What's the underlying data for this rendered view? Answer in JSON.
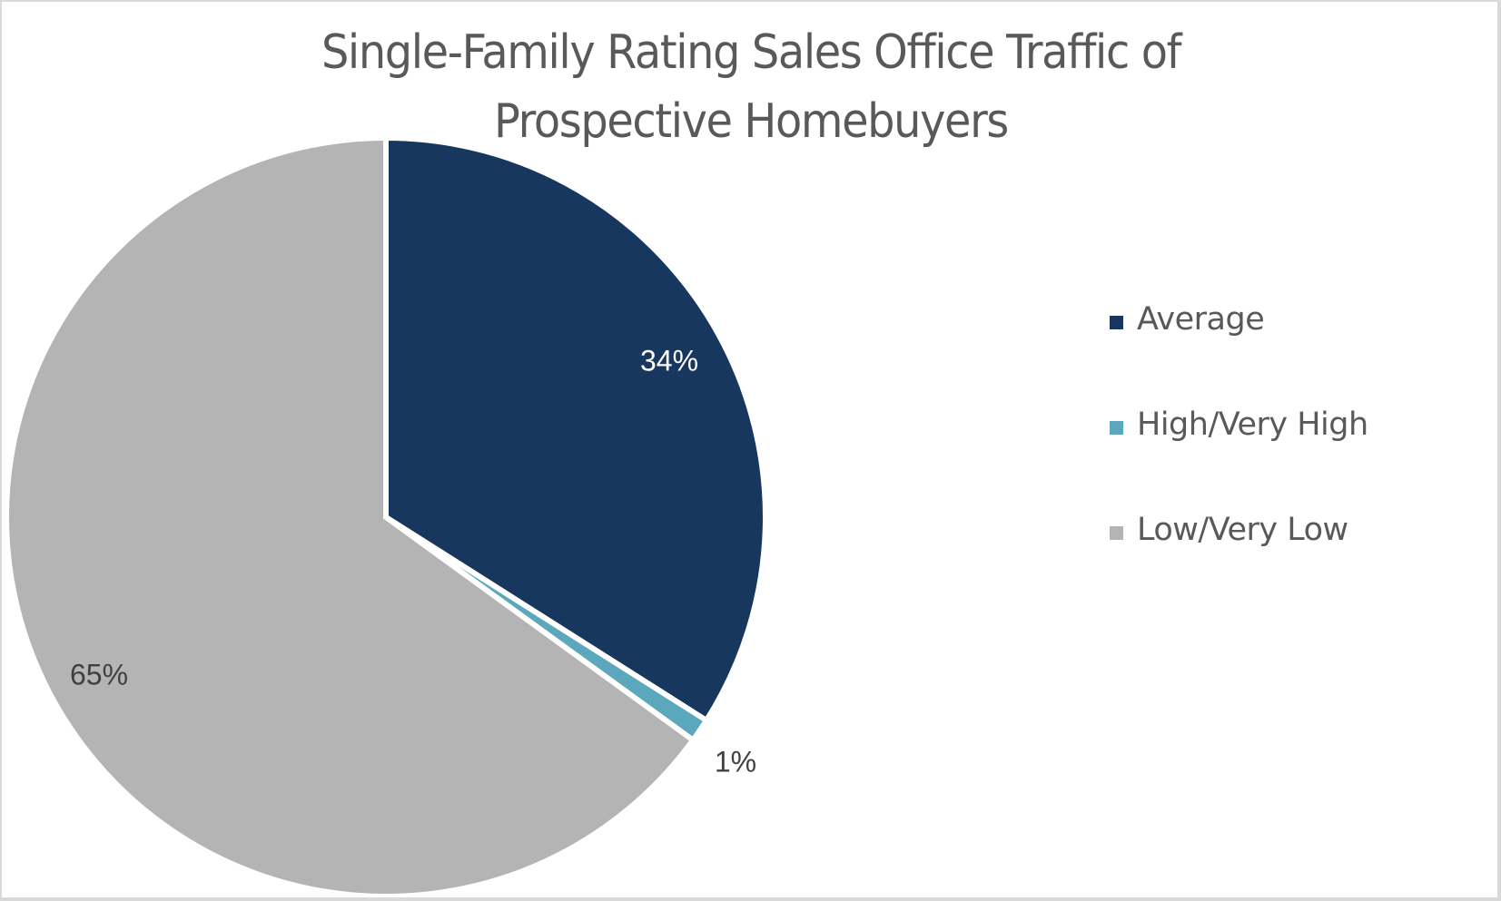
{
  "chart_data": {
    "type": "pie",
    "title": "Single-Family Rating Sales Office Traffic of Prospective Homebuyers",
    "title_lines": [
      "Single-Family Rating Sales Office Traffic of",
      "Prospective Homebuyers"
    ],
    "categories": [
      "Average",
      "High/Very High",
      "Low/Very Low"
    ],
    "values": [
      34,
      1,
      65
    ],
    "data_labels": [
      "34%",
      "1%",
      "65%"
    ],
    "colors": [
      "#17375e",
      "#5ba7bc",
      "#b4b4b4"
    ],
    "label_colors": [
      "#ffffff",
      "#404040",
      "#404040"
    ],
    "legend": "right"
  }
}
